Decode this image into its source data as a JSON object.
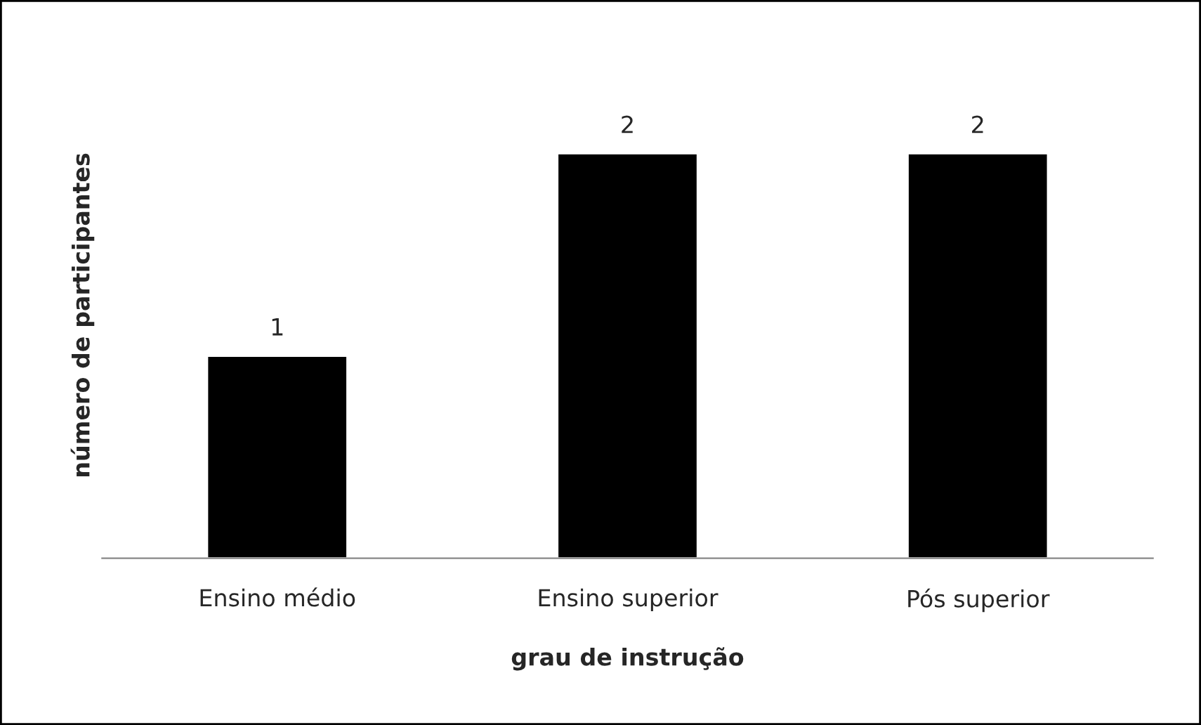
{
  "chart_data": {
    "type": "bar",
    "xlabel": "grau de instrução",
    "ylabel": "número de participantes",
    "categories": [
      "Ensino médio",
      "Ensino superior",
      "Pós superior"
    ],
    "values": [
      1,
      2,
      2
    ],
    "color": "#000000",
    "tick_labels": "x",
    "data_labels": true,
    "grid": false,
    "legend": false
  }
}
